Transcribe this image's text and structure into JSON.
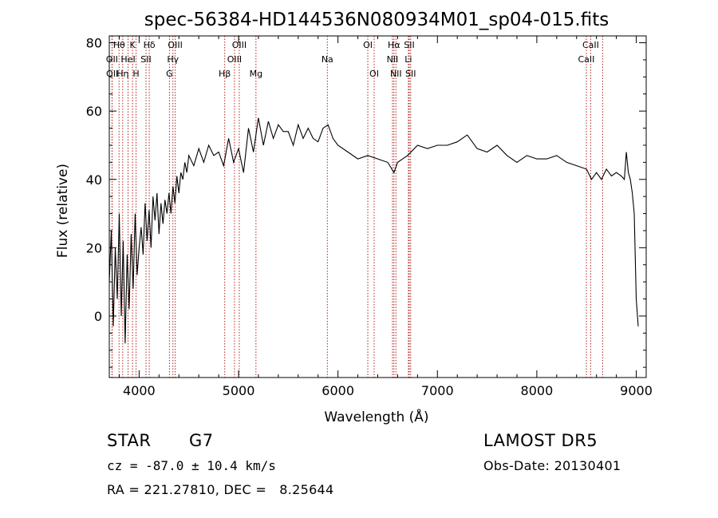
{
  "chart_data": {
    "type": "line",
    "title": "spec-56384-HD144536N080934M01_sp04-015.fits",
    "xlabel": "Wavelength (Å)",
    "ylabel": "Flux (relative)",
    "xlim": [
      3700,
      9100
    ],
    "ylim": [
      -18,
      82
    ],
    "x_ticks": [
      4000,
      5000,
      6000,
      7000,
      8000,
      9000
    ],
    "y_ticks": [
      0,
      20,
      40,
      60,
      80
    ],
    "grid": false,
    "series": [
      {
        "color": "#000000",
        "x": [
          3700,
          3720,
          3740,
          3760,
          3780,
          3800,
          3820,
          3840,
          3860,
          3880,
          3900,
          3920,
          3940,
          3960,
          3980,
          4000,
          4020,
          4040,
          4060,
          4080,
          4100,
          4120,
          4140,
          4160,
          4180,
          4200,
          4220,
          4240,
          4260,
          4280,
          4300,
          4320,
          4340,
          4360,
          4380,
          4400,
          4420,
          4440,
          4460,
          4480,
          4500,
          4550,
          4600,
          4650,
          4700,
          4750,
          4800,
          4850,
          4900,
          4950,
          5000,
          5050,
          5100,
          5150,
          5200,
          5250,
          5300,
          5350,
          5400,
          5450,
          5500,
          5550,
          5600,
          5650,
          5700,
          5750,
          5800,
          5850,
          5900,
          5950,
          6000,
          6100,
          6200,
          6300,
          6400,
          6500,
          6563,
          6600,
          6700,
          6800,
          6900,
          7000,
          7100,
          7200,
          7300,
          7400,
          7500,
          7600,
          7700,
          7800,
          7900,
          8000,
          8100,
          8200,
          8300,
          8400,
          8500,
          8550,
          8600,
          8650,
          8700,
          8750,
          8800,
          8850,
          8880,
          8900,
          8920,
          8940,
          8960,
          8980,
          9000,
          9020
        ],
        "y": [
          10,
          25,
          -3,
          20,
          5,
          30,
          0,
          22,
          -8,
          18,
          2,
          24,
          8,
          30,
          12,
          20,
          26,
          18,
          33,
          22,
          31,
          20,
          35,
          28,
          36,
          24,
          33,
          27,
          34,
          30,
          36,
          30,
          38,
          33,
          41,
          36,
          42,
          40,
          45,
          42,
          47,
          44,
          49,
          45,
          50,
          47,
          48,
          44,
          52,
          45,
          49,
          42,
          55,
          48,
          58,
          50,
          57,
          52,
          56,
          54,
          54,
          50,
          56,
          52,
          55,
          52,
          51,
          55,
          56,
          52,
          50,
          48,
          46,
          47,
          46,
          45,
          42,
          45,
          47,
          50,
          49,
          50,
          50,
          51,
          53,
          49,
          48,
          50,
          47,
          45,
          47,
          46,
          46,
          47,
          45,
          44,
          43,
          40,
          42,
          40,
          43,
          41,
          42,
          41,
          40,
          48,
          42,
          40,
          36,
          30,
          5,
          -3
        ]
      }
    ],
    "annotations": [
      {
        "label": "Hθ",
        "x": 3798
      },
      {
        "label": "K",
        "x": 3934
      },
      {
        "label": "Hδ",
        "x": 4102
      },
      {
        "label": "OIII",
        "x": 4363
      },
      {
        "label": "OIII",
        "x": 5007
      },
      {
        "label": "OI",
        "x": 6300
      },
      {
        "label": "Hα",
        "x": 6563
      },
      {
        "label": "SII",
        "x": 6717
      },
      {
        "label": "CaII",
        "x": 8542
      },
      {
        "label": "OII",
        "x": 3727
      },
      {
        "label": "HeI",
        "x": 3889
      },
      {
        "label": "SII",
        "x": 4069
      },
      {
        "label": "Hγ",
        "x": 4340
      },
      {
        "label": "OIII",
        "x": 4959
      },
      {
        "label": "Na",
        "x": 5893
      },
      {
        "label": "NII",
        "x": 6548
      },
      {
        "label": "Li",
        "x": 6708
      },
      {
        "label": "CaII",
        "x": 8498
      },
      {
        "label": "OII",
        "x": 3729
      },
      {
        "label": "Hη",
        "x": 3835
      },
      {
        "label": "H",
        "x": 3969
      },
      {
        "label": "G",
        "x": 4305
      },
      {
        "label": "Hβ",
        "x": 4861
      },
      {
        "label": "Mg",
        "x": 5175
      },
      {
        "label": "OI",
        "x": 6364
      },
      {
        "label": "NII",
        "x": 6583
      },
      {
        "label": "SII",
        "x": 6731
      },
      {
        "label": "CaII",
        "x": 8662
      }
    ]
  },
  "info": {
    "object_type": "STAR",
    "subclass": "G7",
    "survey": "LAMOST DR5",
    "cz_line": "cz = -87.0 ± 10.4 km/s",
    "obs_date": "Obs-Date: 20130401",
    "coords": "RA = 221.27810, DEC =   8.25644"
  }
}
